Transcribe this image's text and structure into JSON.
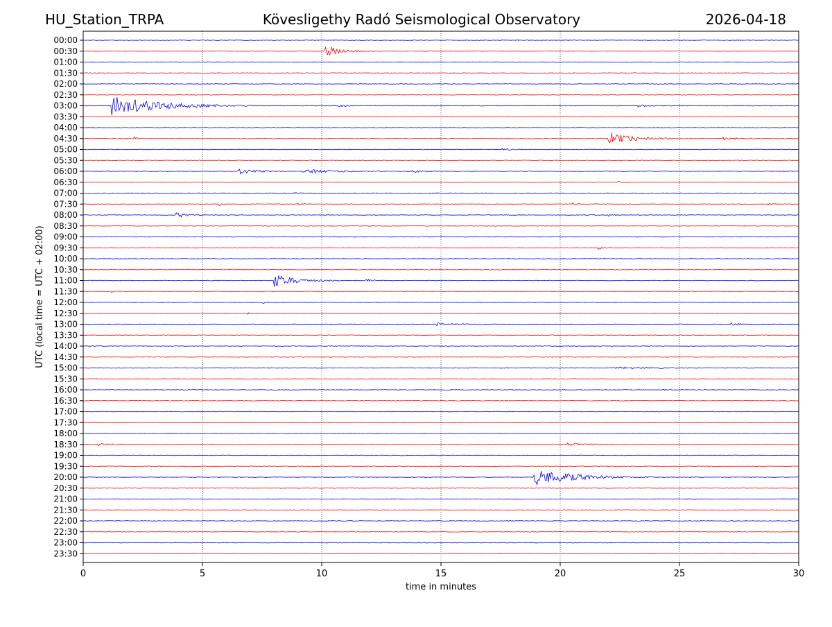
{
  "colors": {
    "trace_a": "#0000ff",
    "trace_b": "#ff0000",
    "grid": "#000000"
  },
  "chart_data": {
    "type": "line",
    "title_left": "HU_Station_TRPA",
    "title_center": "Kövesligethy Radó Seismological Observatory",
    "title_right": "2026-04-18",
    "xlabel": "time in minutes",
    "ylabel": "UTC (local time = UTC + 02:00)",
    "xlim": [
      0,
      30
    ],
    "xticks": [
      "0",
      "5",
      "10",
      "15",
      "20",
      "25",
      "30"
    ],
    "xtick_values": [
      0,
      5,
      10,
      15,
      20,
      25,
      30
    ],
    "grid_x": [
      5,
      10,
      15,
      20,
      25
    ],
    "traces": [
      "00:00",
      "00:30",
      "01:00",
      "01:30",
      "02:00",
      "02:30",
      "03:00",
      "03:30",
      "04:00",
      "04:30",
      "05:00",
      "05:30",
      "06:00",
      "06:30",
      "07:00",
      "07:30",
      "08:00",
      "08:30",
      "09:00",
      "09:30",
      "10:00",
      "10:30",
      "11:00",
      "11:30",
      "12:00",
      "12:30",
      "13:00",
      "13:30",
      "14:00",
      "14:30",
      "15:00",
      "15:30",
      "16:00",
      "16:30",
      "17:00",
      "17:30",
      "18:00",
      "18:30",
      "19:00",
      "19:30",
      "20:00",
      "20:30",
      "21:00",
      "21:30",
      "22:00",
      "22:30",
      "23:00",
      "23:30"
    ],
    "events": [
      {
        "trace": "00:30",
        "start_min": 10.1,
        "duration_min": 2.0,
        "amplitude": 1.6
      },
      {
        "trace": "03:00",
        "start_min": 1.2,
        "duration_min": 6.0,
        "amplitude": 2.6
      },
      {
        "trace": "03:00",
        "start_min": 10.7,
        "duration_min": 0.8,
        "amplitude": 0.35
      },
      {
        "trace": "03:00",
        "start_min": 23.1,
        "duration_min": 1.8,
        "amplitude": 0.35
      },
      {
        "trace": "04:30",
        "start_min": 2.1,
        "duration_min": 0.6,
        "amplitude": 0.5
      },
      {
        "trace": "04:30",
        "start_min": 22.0,
        "duration_min": 3.0,
        "amplitude": 1.8
      },
      {
        "trace": "04:30",
        "start_min": 26.8,
        "duration_min": 2.0,
        "amplitude": 0.35
      },
      {
        "trace": "05:00",
        "start_min": 17.5,
        "duration_min": 1.5,
        "amplitude": 0.3
      },
      {
        "trace": "06:00",
        "start_min": 6.5,
        "duration_min": 1.8,
        "amplitude": 1.0
      },
      {
        "trace": "06:00",
        "start_min": 9.2,
        "duration_min": 3.2,
        "amplitude": 0.7
      },
      {
        "trace": "06:00",
        "start_min": 13.8,
        "duration_min": 1.5,
        "amplitude": 0.4
      },
      {
        "trace": "06:30",
        "start_min": 22.4,
        "duration_min": 0.6,
        "amplitude": 0.3
      },
      {
        "trace": "07:00",
        "start_min": 8.8,
        "duration_min": 0.8,
        "amplitude": 0.3
      },
      {
        "trace": "07:30",
        "start_min": 5.7,
        "duration_min": 0.3,
        "amplitude": 0.4
      },
      {
        "trace": "07:30",
        "start_min": 9.0,
        "duration_min": 0.4,
        "amplitude": 0.45
      },
      {
        "trace": "07:30",
        "start_min": 20.5,
        "duration_min": 1.5,
        "amplitude": 0.3
      },
      {
        "trace": "07:30",
        "start_min": 28.7,
        "duration_min": 0.5,
        "amplitude": 0.45
      },
      {
        "trace": "08:00",
        "start_min": 3.9,
        "duration_min": 1.0,
        "amplitude": 1.0
      },
      {
        "trace": "08:00",
        "start_min": 22.0,
        "duration_min": 0.6,
        "amplitude": 0.3
      },
      {
        "trace": "09:30",
        "start_min": 21.6,
        "duration_min": 0.6,
        "amplitude": 0.35
      },
      {
        "trace": "11:00",
        "start_min": 8.0,
        "duration_min": 3.0,
        "amplitude": 1.6
      },
      {
        "trace": "11:00",
        "start_min": 11.8,
        "duration_min": 1.0,
        "amplitude": 0.5
      },
      {
        "trace": "11:30",
        "start_min": 1.2,
        "duration_min": 0.5,
        "amplitude": 0.3
      },
      {
        "trace": "12:00",
        "start_min": 7.5,
        "duration_min": 0.3,
        "amplitude": 0.4
      },
      {
        "trace": "12:30",
        "start_min": 6.9,
        "duration_min": 0.3,
        "amplitude": 0.35
      },
      {
        "trace": "13:00",
        "start_min": 14.8,
        "duration_min": 2.5,
        "amplitude": 0.35
      },
      {
        "trace": "13:00",
        "start_min": 27.1,
        "duration_min": 1.0,
        "amplitude": 0.45
      },
      {
        "trace": "13:30",
        "start_min": 23.8,
        "duration_min": 0.3,
        "amplitude": 0.45
      },
      {
        "trace": "15:00",
        "start_min": 22.1,
        "duration_min": 4.5,
        "amplitude": 0.35
      },
      {
        "trace": "16:00",
        "start_min": 24.2,
        "duration_min": 0.8,
        "amplitude": 0.25
      },
      {
        "trace": "18:30",
        "start_min": 0.6,
        "duration_min": 1.5,
        "amplitude": 0.4
      },
      {
        "trace": "18:30",
        "start_min": 20.3,
        "duration_min": 2.2,
        "amplitude": 0.45
      },
      {
        "trace": "20:00",
        "start_min": 18.9,
        "duration_min": 5.0,
        "amplitude": 2.2
      }
    ]
  }
}
